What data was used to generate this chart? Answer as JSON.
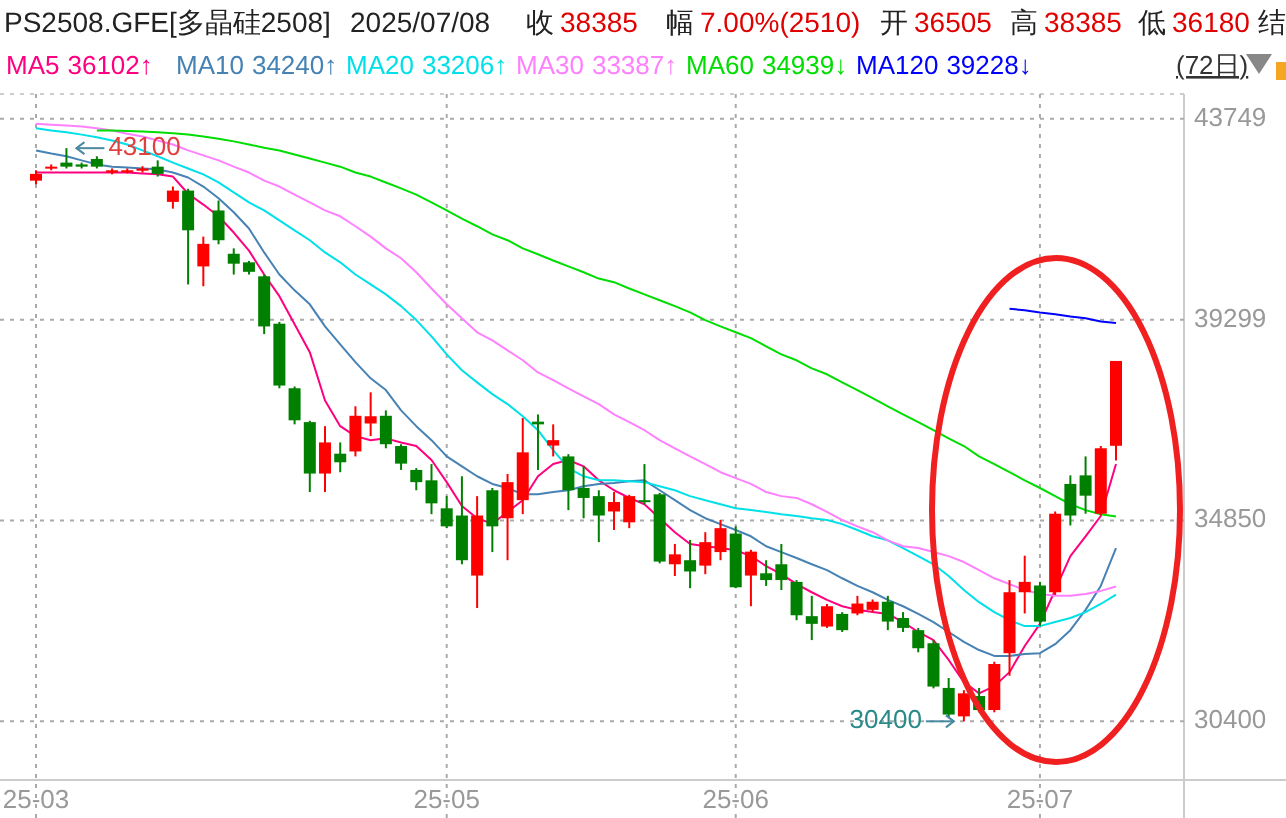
{
  "chart_data": {
    "type": "candlestick",
    "title": "PS2508.GFE[多晶硅2508]",
    "subtitle": "2025/07/08",
    "annotations": [
      "收 38385",
      "幅 7.00%(2510)",
      "开 36505",
      "高 38385",
      "低 36180",
      "结",
      "36102↑",
      "34240↑",
      "33206↑",
      "33387↑",
      "34939↓",
      "39228↓",
      "(72日)",
      "43100",
      "30400"
    ],
    "categories": [
      "25-03",
      null,
      null,
      null,
      null,
      null,
      null,
      null,
      null,
      null,
      null,
      null,
      null,
      null,
      null,
      null,
      null,
      null,
      null,
      null,
      null,
      null,
      null,
      null,
      null,
      null,
      null,
      "25-05",
      null,
      null,
      null,
      null,
      null,
      null,
      null,
      null,
      null,
      null,
      null,
      null,
      null,
      null,
      null,
      null,
      null,
      null,
      "25-06",
      null,
      null,
      null,
      null,
      null,
      null,
      null,
      null,
      null,
      null,
      null,
      null,
      null,
      null,
      null,
      null,
      null,
      null,
      null,
      "25-07",
      null,
      null,
      null,
      null,
      null
    ],
    "ohlc": [
      [
        42380,
        42610,
        42300,
        42530
      ],
      [
        42650,
        42740,
        42610,
        42690
      ],
      [
        42780,
        43100,
        42650,
        42690
      ],
      [
        42740,
        42780,
        42650,
        42690
      ],
      [
        42860,
        42920,
        42650,
        42690
      ],
      [
        42560,
        42650,
        42520,
        42610
      ],
      [
        42570,
        42650,
        42540,
        42610
      ],
      [
        42600,
        42700,
        42560,
        42650
      ],
      [
        42690,
        42830,
        42470,
        42530
      ],
      [
        41910,
        42250,
        41760,
        42160
      ],
      [
        42160,
        42200,
        40080,
        41280
      ],
      [
        40480,
        41140,
        40040,
        40980
      ],
      [
        41720,
        41940,
        40970,
        41060
      ],
      [
        40760,
        40880,
        40300,
        40540
      ],
      [
        40570,
        40600,
        40300,
        40360
      ],
      [
        40260,
        40300,
        38980,
        39150
      ],
      [
        39210,
        39250,
        37780,
        37840
      ],
      [
        37780,
        37820,
        36980,
        37070
      ],
      [
        37030,
        37060,
        35480,
        35890
      ],
      [
        35890,
        36940,
        35480,
        36580
      ],
      [
        36330,
        36580,
        35920,
        36140
      ],
      [
        36380,
        37380,
        36270,
        37170
      ],
      [
        37000,
        37690,
        36720,
        37160
      ],
      [
        37170,
        37290,
        36450,
        36540
      ],
      [
        36500,
        36540,
        35970,
        36110
      ],
      [
        35970,
        36010,
        35520,
        35700
      ],
      [
        35740,
        36100,
        34990,
        35230
      ],
      [
        35120,
        35390,
        34680,
        34720
      ],
      [
        34960,
        35830,
        33880,
        33970
      ],
      [
        33630,
        35390,
        32910,
        34960
      ],
      [
        35520,
        35570,
        34150,
        34720
      ],
      [
        34900,
        35880,
        33970,
        35700
      ],
      [
        35300,
        37120,
        34990,
        36360
      ],
      [
        37040,
        37200,
        35970,
        36980
      ],
      [
        36510,
        36980,
        36270,
        36630
      ],
      [
        36270,
        36320,
        35080,
        35520
      ],
      [
        35570,
        36050,
        34900,
        35350
      ],
      [
        35390,
        35520,
        34370,
        34960
      ],
      [
        35050,
        35480,
        34640,
        35260
      ],
      [
        34810,
        35420,
        34680,
        35390
      ],
      [
        35300,
        36100,
        35210,
        35260
      ],
      [
        35430,
        35460,
        33900,
        33940
      ],
      [
        33880,
        34330,
        33620,
        34100
      ],
      [
        33970,
        34420,
        33350,
        33720
      ],
      [
        33850,
        34590,
        33660,
        34370
      ],
      [
        34150,
        34860,
        33970,
        34680
      ],
      [
        34560,
        34720,
        33350,
        33370
      ],
      [
        33630,
        34200,
        32950,
        34160
      ],
      [
        33680,
        33970,
        33400,
        33530
      ],
      [
        33880,
        34330,
        33310,
        33530
      ],
      [
        33490,
        33530,
        32640,
        32750
      ],
      [
        32730,
        33180,
        32200,
        32560
      ],
      [
        32500,
        33000,
        32470,
        32950
      ],
      [
        32780,
        32820,
        32380,
        32420
      ],
      [
        32790,
        33180,
        32750,
        33010
      ],
      [
        32870,
        33100,
        32820,
        33050
      ],
      [
        33050,
        33180,
        32420,
        32610
      ],
      [
        32690,
        32820,
        32380,
        32470
      ],
      [
        32420,
        32470,
        31930,
        32020
      ],
      [
        32130,
        32200,
        31130,
        31170
      ],
      [
        31140,
        31360,
        30480,
        30550
      ],
      [
        30510,
        31090,
        30400,
        31020
      ],
      [
        30960,
        31140,
        30600,
        30650
      ],
      [
        30650,
        31720,
        30600,
        31670
      ],
      [
        31910,
        33530,
        31410,
        33260
      ],
      [
        33260,
        34070,
        32790,
        33490
      ],
      [
        33410,
        33490,
        32510,
        32610
      ],
      [
        33260,
        35050,
        33200,
        35000
      ],
      [
        35660,
        35850,
        34740,
        34960
      ],
      [
        35850,
        36270,
        35000,
        35400
      ],
      [
        35000,
        36500,
        34960,
        36450
      ],
      [
        36505,
        38385,
        36180,
        38385
      ]
    ],
    "colors": [
      "#ff0000",
      "#ff0000",
      "#008000",
      "#008000",
      "#008000",
      "#ff0000",
      "#ff0000",
      "#ff0000",
      "#008000",
      "#ff0000",
      "#008000",
      "#ff0000",
      "#008000",
      "#008000",
      "#008000",
      "#008000",
      "#008000",
      "#008000",
      "#008000",
      "#ff0000",
      "#008000",
      "#ff0000",
      "#ff0000",
      "#008000",
      "#008000",
      "#008000",
      "#008000",
      "#008000",
      "#008000",
      "#ff0000",
      "#008000",
      "#ff0000",
      "#ff0000",
      "#008000",
      "#ff0000",
      "#008000",
      "#008000",
      "#008000",
      "#ff0000",
      "#ff0000",
      "#008000",
      "#008000",
      "#ff0000",
      "#008000",
      "#ff0000",
      "#ff0000",
      "#008000",
      "#ff0000",
      "#008000",
      "#008000",
      "#008000",
      "#008000",
      "#ff0000",
      "#008000",
      "#ff0000",
      "#ff0000",
      "#008000",
      "#008000",
      "#008000",
      "#008000",
      "#008000",
      "#ff0000",
      "#008000",
      "#ff0000",
      "#ff0000",
      "#ff0000",
      "#008000",
      "#ff0000",
      "#008000",
      "#008000",
      "#ff0000",
      "#ff0000"
    ],
    "series": [
      {
        "name": "MA5",
        "type": "line",
        "color": "#ff0080",
        "values": [
          42560,
          42560,
          42560,
          42560,
          42560,
          42560,
          42560,
          42540,
          42520,
          42470,
          42090,
          41850,
          41590,
          41230,
          40830,
          40300,
          39820,
          39200,
          38580,
          37510,
          36940,
          36720,
          36630,
          36670,
          36580,
          36500,
          36190,
          35700,
          35170,
          34900,
          34780,
          35040,
          35300,
          35830,
          36100,
          36190,
          36050,
          35740,
          35520,
          35350,
          35210,
          34900,
          34590,
          34330,
          34280,
          34240,
          34190,
          34060,
          33840,
          33660,
          33440,
          33260,
          33090,
          32950,
          32870,
          32820,
          32780,
          32600,
          32380,
          32200,
          31760,
          31270,
          31020,
          31180,
          31490,
          32070,
          32560,
          33310,
          34060,
          34500,
          34950,
          36102
        ]
      },
      {
        "name": "MA10",
        "type": "line",
        "color": "#4682b4",
        "values": [
          43050,
          42980,
          42920,
          42830,
          42740,
          42690,
          42670,
          42650,
          42630,
          42560,
          42450,
          42250,
          41990,
          41680,
          41320,
          40790,
          40300,
          39950,
          39640,
          39150,
          38750,
          38360,
          38000,
          37740,
          37290,
          36940,
          36630,
          36270,
          36050,
          35830,
          35660,
          35570,
          35430,
          35430,
          35480,
          35520,
          35610,
          35660,
          35680,
          35720,
          35740,
          35520,
          35300,
          35080,
          34900,
          34770,
          34640,
          34500,
          34280,
          34150,
          34020,
          33880,
          33750,
          33570,
          33400,
          33260,
          33090,
          32950,
          32780,
          32600,
          32380,
          32160,
          31980,
          31850,
          31850,
          31890,
          31910,
          32110,
          32420,
          32870,
          33400,
          34240
        ]
      },
      {
        "name": "MA20",
        "type": "line",
        "color": "#00e0e8",
        "values": [
          43540,
          43490,
          43450,
          43400,
          43340,
          43270,
          43180,
          43050,
          42920,
          42780,
          42650,
          42520,
          42340,
          42120,
          41900,
          41720,
          41500,
          41280,
          41060,
          40790,
          40570,
          40300,
          40080,
          39860,
          39600,
          39290,
          38930,
          38530,
          38180,
          37910,
          37650,
          37430,
          37160,
          36850,
          36410,
          36010,
          35830,
          35740,
          35740,
          35720,
          35700,
          35610,
          35520,
          35390,
          35300,
          35210,
          35120,
          35080,
          35040,
          34990,
          34950,
          34900,
          34860,
          34770,
          34640,
          34500,
          34410,
          34240,
          34060,
          33880,
          33620,
          33310,
          33040,
          32820,
          32640,
          32510,
          32510,
          32600,
          32690,
          32820,
          33000,
          33206
        ]
      },
      {
        "name": "MA30",
        "type": "line",
        "color": "#ff80ff",
        "values": [
          43640,
          43620,
          43600,
          43580,
          43540,
          43490,
          43420,
          43360,
          43270,
          43180,
          43050,
          42940,
          42830,
          42690,
          42560,
          42380,
          42250,
          42070,
          41900,
          41720,
          41590,
          41370,
          41140,
          40880,
          40660,
          40350,
          39990,
          39640,
          39330,
          39020,
          38840,
          38620,
          38400,
          38130,
          37960,
          37780,
          37600,
          37430,
          37200,
          37030,
          36850,
          36630,
          36450,
          36270,
          36100,
          35920,
          35790,
          35660,
          35480,
          35390,
          35350,
          35210,
          35040,
          34860,
          34720,
          34590,
          34410,
          34280,
          34240,
          34150,
          34060,
          33930,
          33750,
          33570,
          33440,
          33310,
          33220,
          33180,
          33180,
          33220,
          33290,
          33387
        ]
      },
      {
        "name": "MA60",
        "type": "line",
        "color": "#00dd00",
        "values": [
          null,
          null,
          null,
          null,
          43490,
          43490,
          43480,
          43470,
          43450,
          43430,
          43400,
          43360,
          43310,
          43250,
          43180,
          43110,
          43050,
          42960,
          42870,
          42780,
          42690,
          42560,
          42470,
          42340,
          42210,
          42070,
          41900,
          41720,
          41540,
          41370,
          41190,
          41060,
          40880,
          40750,
          40610,
          40480,
          40350,
          40210,
          40130,
          39990,
          39860,
          39730,
          39600,
          39460,
          39290,
          39150,
          39020,
          38890,
          38710,
          38530,
          38400,
          38220,
          38090,
          37910,
          37740,
          37560,
          37380,
          37200,
          37030,
          36850,
          36670,
          36500,
          36270,
          36100,
          35920,
          35740,
          35570,
          35390,
          35210,
          35080,
          34990,
          34939
        ]
      },
      {
        "name": "MA120",
        "type": "line",
        "color": "#0000ff",
        "values": [
          null,
          null,
          null,
          null,
          null,
          null,
          null,
          null,
          null,
          null,
          null,
          null,
          null,
          null,
          null,
          null,
          null,
          null,
          null,
          null,
          null,
          null,
          null,
          null,
          null,
          null,
          null,
          null,
          null,
          null,
          null,
          null,
          null,
          null,
          null,
          null,
          null,
          null,
          null,
          null,
          null,
          null,
          null,
          null,
          null,
          null,
          null,
          null,
          null,
          null,
          null,
          null,
          null,
          null,
          null,
          null,
          null,
          null,
          null,
          null,
          null,
          null,
          null,
          null,
          39540,
          39510,
          39460,
          39420,
          39370,
          39330,
          39260,
          39228
        ]
      }
    ],
    "ylim": [
      29100,
      44300
    ],
    "yticks": [
      43749,
      39299,
      34850,
      30400
    ],
    "grid": true,
    "legend": "top"
  }
}
